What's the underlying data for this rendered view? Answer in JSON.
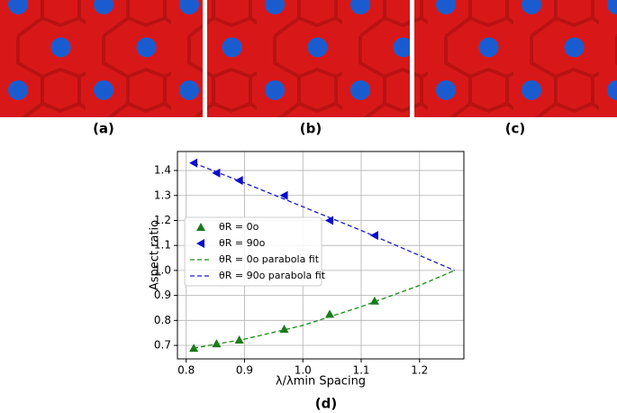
{
  "panels": [
    "(a)",
    "(b)",
    "(c)"
  ],
  "chart_data": {
    "type": "scatter-fit",
    "label": "(d)",
    "x_label": "λ/λmin Spacing",
    "y_label": "Aspect ratio",
    "xlim": [
      0.785,
      1.276
    ],
    "ylim": [
      0.646,
      1.476
    ],
    "xticks": [
      0.8,
      0.9,
      {
        "value": 1,
        "label": "1.0"
      },
      1.1,
      1.2
    ],
    "yticks": [
      0.7,
      0.8,
      0.9,
      {
        "value": 1,
        "label": "1.0"
      },
      1.1,
      1.2,
      1.3,
      1.4
    ],
    "grid": true,
    "legend": "center left",
    "series": [
      {
        "name": "θR = 0o",
        "color": "#1a7a1a",
        "marker": "triangle-up",
        "x": [
          0.813,
          0.852,
          0.891,
          0.968,
          1.046,
          1.123
        ],
        "values": [
          0.689,
          0.707,
          0.722,
          0.765,
          0.825,
          0.878
        ]
      },
      {
        "name": "θR = 90o",
        "color": "#0a0acc",
        "marker": "triangle-left",
        "x": [
          0.813,
          0.852,
          0.891,
          0.968,
          1.046,
          1.123
        ],
        "values": [
          1.43,
          1.39,
          1.36,
          1.3,
          1.2,
          1.14
        ]
      },
      {
        "name": "θR = 0o parabola fit",
        "color": "#1a8a1a",
        "style": "dashed",
        "x": [
          0.813,
          0.9,
          1.0,
          1.1,
          1.2,
          1.26
        ],
        "values": [
          0.689,
          0.725,
          0.78,
          0.855,
          0.94,
          1.0
        ]
      },
      {
        "name": "θR = 90o parabola fit",
        "color": "#1a1acc",
        "style": "dashed",
        "x": [
          0.813,
          0.9,
          1.0,
          1.1,
          1.2,
          1.26
        ],
        "values": [
          1.43,
          1.35,
          1.255,
          1.16,
          1.06,
          1.0
        ]
      }
    ]
  }
}
